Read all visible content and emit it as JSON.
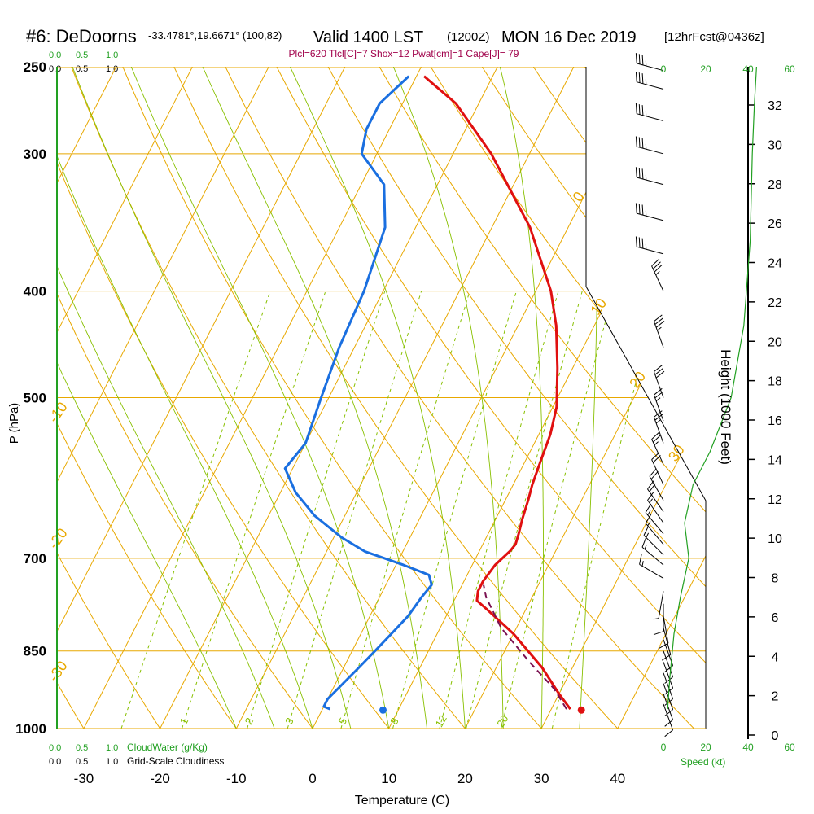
{
  "header": {
    "title_main": "#6: DeDoorns",
    "title_coords": "-33.4781°,19.6671° (100,82)",
    "title_valid": "Valid 1400 LST",
    "title_z": "(1200Z)",
    "title_date": "MON 16 Dec 2019",
    "title_fcst": "[12hrFcst@0436z]",
    "params": "Plcl=620 Tlcl[C]=7 Shox=12 Pwat[cm]=1 Cape[J]= 79"
  },
  "colors": {
    "temp": "#e01010",
    "dew": "#1a6fe0",
    "parcel": "#7a1050",
    "isotherm": "#e8a800",
    "isobar": "#e8a800",
    "dry_adiabat": "#e8a800",
    "moist_adiabat": "#88c000",
    "mixing_ratio": "#88c000",
    "cloud": "#22a022",
    "params": "#a0004a",
    "speed": "#22a022"
  },
  "cloud_scale_top_green": [
    "0.0",
    "0.5",
    "1.0"
  ],
  "cloud_scale_top_black": [
    "0.0",
    "0.5",
    "1.0"
  ],
  "cloud_scale_bottom_green": [
    "0.0",
    "0.5",
    "1.0"
  ],
  "cloud_scale_bottom_black": [
    "0.0",
    "0.5",
    "1.0"
  ],
  "cloudwater_label": "CloudWater (g/Kg)",
  "cloudiness_label": "Grid-Scale Cloudiness",
  "speed_scale": [
    "0",
    "20",
    "40",
    "60"
  ],
  "speed_label": "Speed (kt)",
  "chart_data": {
    "type": "line",
    "title": "Skew-T log-P sounding",
    "xlabel": "Temperature (C)",
    "ylabel": "P (hPa)",
    "y2label": "Height (1000 Feet)",
    "xlim": [
      -35,
      47
    ],
    "ylim": [
      1000,
      250
    ],
    "x_ticks": [
      -30,
      -20,
      -10,
      0,
      10,
      20,
      30,
      40
    ],
    "p_ticks": [
      250,
      300,
      400,
      500,
      700,
      850,
      1000
    ],
    "height_ticks": [
      0,
      2,
      4,
      6,
      8,
      10,
      12,
      14,
      16,
      18,
      20,
      22,
      24,
      26,
      28,
      30,
      32
    ],
    "isotherms": [
      -70,
      -60,
      -50,
      -40,
      -30,
      -20,
      -10,
      0,
      10,
      20,
      30,
      40
    ],
    "isotherm_labels": [
      {
        "text": "30",
        "value": 30
      },
      {
        "text": "20",
        "value": 20
      },
      {
        "text": "10",
        "value": 10
      },
      {
        "text": "0",
        "value": 0
      },
      {
        "text": "-10",
        "value": -10
      },
      {
        "text": "-20",
        "value": -20
      },
      {
        "text": "-30",
        "value": -30
      }
    ],
    "mixing_ratio_labels": [
      "1",
      "2",
      "3",
      "5",
      "8",
      "12",
      "20"
    ],
    "mixing_ratio_values": [
      1,
      2,
      3,
      5,
      8,
      12,
      20
    ],
    "series": [
      {
        "name": "Temperature",
        "points": [
          [
            32.5,
            960
          ],
          [
            30,
            930
          ],
          [
            26,
            880
          ],
          [
            20,
            820
          ],
          [
            15,
            780
          ],
          [
            13,
            765
          ],
          [
            12.5,
            750
          ],
          [
            12.5,
            735
          ],
          [
            13,
            710
          ],
          [
            14,
            690
          ],
          [
            14.3,
            680
          ],
          [
            14,
            665
          ],
          [
            13.5,
            645
          ],
          [
            13,
            620
          ],
          [
            12.5,
            600
          ],
          [
            12,
            570
          ],
          [
            11.5,
            540
          ],
          [
            10.5,
            510
          ],
          [
            8,
            470
          ],
          [
            5,
            430
          ],
          [
            2,
            400
          ],
          [
            -5,
            350
          ],
          [
            -15,
            300
          ],
          [
            -23,
            270
          ],
          [
            -29,
            255
          ]
        ]
      },
      {
        "name": "Dewpoint",
        "points": [
          [
            1,
            960
          ],
          [
            0,
            955
          ],
          [
            0,
            940
          ],
          [
            2,
            880
          ],
          [
            3,
            850
          ],
          [
            4,
            820
          ],
          [
            5,
            790
          ],
          [
            5.5,
            760
          ],
          [
            6,
            740
          ],
          [
            5,
            725
          ],
          [
            1,
            710
          ],
          [
            -5,
            690
          ],
          [
            -9,
            670
          ],
          [
            -14,
            640
          ],
          [
            -18,
            610
          ],
          [
            -21,
            580
          ],
          [
            -20,
            550
          ],
          [
            -21,
            500
          ],
          [
            -22,
            450
          ],
          [
            -22.5,
            400
          ],
          [
            -24,
            350
          ],
          [
            -27,
            320
          ],
          [
            -32,
            300
          ],
          [
            -33,
            285
          ],
          [
            -33,
            270
          ],
          [
            -31,
            255
          ]
        ]
      },
      {
        "name": "Parcel",
        "dashed": true,
        "points": [
          [
            32,
            960
          ],
          [
            29,
            920
          ],
          [
            24,
            870
          ],
          [
            18,
            810
          ],
          [
            14,
            760
          ],
          [
            12.8,
            740
          ]
        ]
      }
    ],
    "markers": [
      {
        "name": "Surface temperature",
        "temp": 34,
        "p": 962
      },
      {
        "name": "Surface dewpoint",
        "temp": 8,
        "p": 962
      }
    ],
    "cloud_profile_pts": [
      [
        0,
        962
      ],
      [
        0,
        250
      ]
    ],
    "speed_profile_pts": [
      [
        2,
        960
      ],
      [
        3,
        900
      ],
      [
        5,
        820
      ],
      [
        8,
        760
      ],
      [
        12,
        700
      ],
      [
        10,
        650
      ],
      [
        14,
        600
      ],
      [
        22,
        560
      ],
      [
        32,
        500
      ],
      [
        38,
        430
      ],
      [
        41,
        360
      ],
      [
        42,
        300
      ],
      [
        43,
        270
      ],
      [
        44,
        250
      ]
    ],
    "wind_barbs": [
      {
        "p": 950,
        "dir": 160,
        "spd": 12
      },
      {
        "p": 930,
        "dir": 160,
        "spd": 12
      },
      {
        "p": 910,
        "dir": 160,
        "spd": 12
      },
      {
        "p": 890,
        "dir": 160,
        "spd": 12
      },
      {
        "p": 870,
        "dir": 160,
        "spd": 12
      },
      {
        "p": 850,
        "dir": 160,
        "spd": 12
      },
      {
        "p": 830,
        "dir": 160,
        "spd": 12
      },
      {
        "p": 810,
        "dir": 165,
        "spd": 12
      },
      {
        "p": 790,
        "dir": 170,
        "spd": 12
      },
      {
        "p": 770,
        "dir": 180,
        "spd": 10
      },
      {
        "p": 750,
        "dir": 190,
        "spd": 8
      },
      {
        "p": 730,
        "dir": 300,
        "spd": 15
      },
      {
        "p": 710,
        "dir": 310,
        "spd": 15
      },
      {
        "p": 695,
        "dir": 315,
        "spd": 15
      },
      {
        "p": 680,
        "dir": 320,
        "spd": 15
      },
      {
        "p": 665,
        "dir": 320,
        "spd": 15
      },
      {
        "p": 650,
        "dir": 325,
        "spd": 15
      },
      {
        "p": 635,
        "dir": 325,
        "spd": 20
      },
      {
        "p": 620,
        "dir": 330,
        "spd": 20
      },
      {
        "p": 600,
        "dir": 335,
        "spd": 20
      },
      {
        "p": 575,
        "dir": 335,
        "spd": 25
      },
      {
        "p": 550,
        "dir": 340,
        "spd": 25
      },
      {
        "p": 525,
        "dir": 340,
        "spd": 25
      },
      {
        "p": 500,
        "dir": 340,
        "spd": 30
      },
      {
        "p": 450,
        "dir": 340,
        "spd": 35
      },
      {
        "p": 400,
        "dir": 335,
        "spd": 35
      },
      {
        "p": 370,
        "dir": 285,
        "spd": 35
      },
      {
        "p": 345,
        "dir": 285,
        "spd": 35
      },
      {
        "p": 320,
        "dir": 285,
        "spd": 35
      },
      {
        "p": 300,
        "dir": 285,
        "spd": 35
      },
      {
        "p": 280,
        "dir": 285,
        "spd": 35
      },
      {
        "p": 262,
        "dir": 285,
        "spd": 35
      },
      {
        "p": 252,
        "dir": 285,
        "spd": 35
      }
    ]
  }
}
